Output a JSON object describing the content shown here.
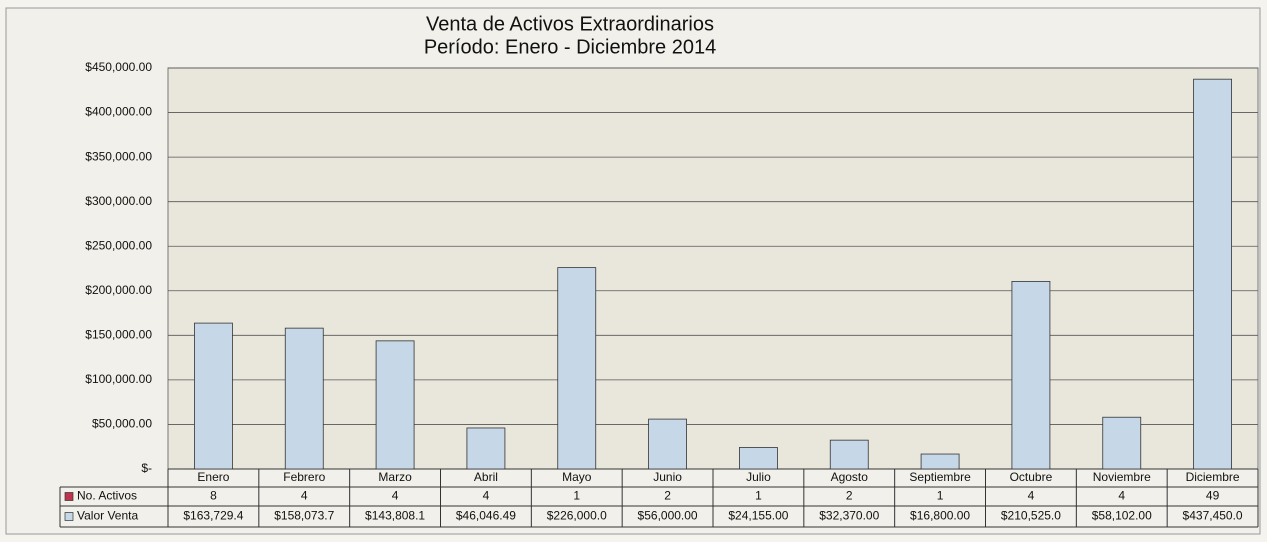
{
  "chart_data": {
    "type": "bar",
    "title": "Venta de Activos Extraordinarios",
    "subtitle": "Período: Enero - Diciembre 2014",
    "categories": [
      "Enero",
      "Febrero",
      "Marzo",
      "Abril",
      "Mayo",
      "Junio",
      "Julio",
      "Agosto",
      "Septiembre",
      "Octubre",
      "Noviembre",
      "Diciembre"
    ],
    "series": [
      {
        "name": "No. Activos",
        "color": "#c0334d",
        "values": [
          8,
          4,
          4,
          4,
          1,
          2,
          1,
          2,
          1,
          4,
          4,
          49
        ]
      },
      {
        "name": "Valor Venta",
        "color": "#c6d8e8",
        "values": [
          163729.4,
          158073.7,
          143808.1,
          46046.49,
          226000.0,
          56000,
          24155,
          32370,
          16800,
          210525.0,
          58102,
          437450.0
        ],
        "value_labels": [
          "$163,729.4",
          "$158,073.7",
          "$143,808.1",
          "$46,046.49",
          "$226,000.0",
          "$56,000.00",
          "$24,155.00",
          "$32,370.00",
          "$16,800.00",
          "$210,525.0",
          "$58,102.00",
          "$437,450.0"
        ]
      }
    ],
    "ylim": [
      0,
      450000
    ],
    "yticks": [
      {
        "value": 0,
        "label": "$-"
      },
      {
        "value": 50000,
        "label": "$50,000.00"
      },
      {
        "value": 100000,
        "label": "$100,000.00"
      },
      {
        "value": 150000,
        "label": "$150,000.00"
      },
      {
        "value": 200000,
        "label": "$200,000.00"
      },
      {
        "value": 250000,
        "label": "$250,000.00"
      },
      {
        "value": 300000,
        "label": "$300,000.00"
      },
      {
        "value": 350000,
        "label": "$350,000.00"
      },
      {
        "value": 400000,
        "label": "$400,000.00"
      },
      {
        "value": 450000,
        "label": "$450,000.00"
      }
    ],
    "grid": true
  }
}
